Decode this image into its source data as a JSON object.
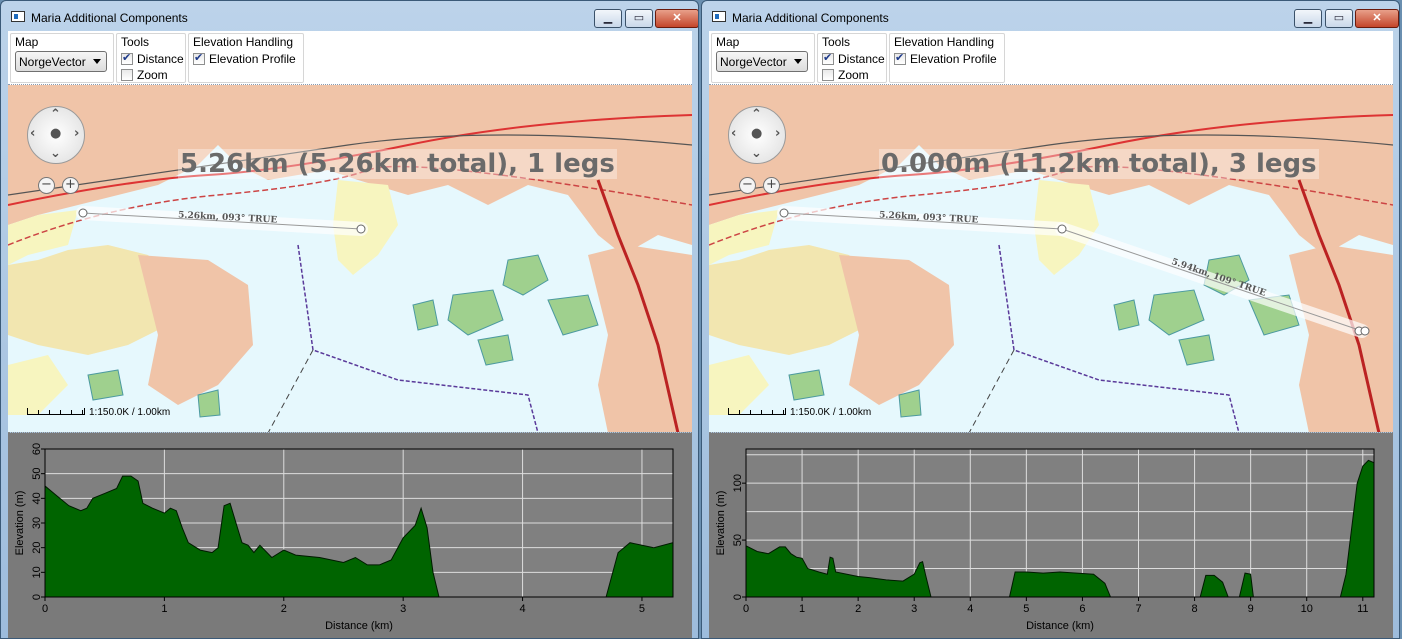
{
  "windows": [
    {
      "title": "Maria Additional Components",
      "toolbar": {
        "map_group_label": "Map",
        "map_selected": "NorgeVector",
        "tools_label": "Tools",
        "distance_label": "Distance",
        "distance_checked": true,
        "zoom_label": "Zoom",
        "zoom_checked": false,
        "elevation_label": "Elevation Handling",
        "elevation_profile_label": "Elevation Profile",
        "elevation_profile_checked": true
      },
      "map": {
        "measurement_text": "5.26km (5.26km total), 1 legs",
        "legs": [
          {
            "label": "5.26km, 093° TRUE"
          }
        ],
        "scale_text": "1:150.0K / 1.00km"
      },
      "chart_data": {
        "type": "area",
        "xlabel": "Distance (km)",
        "ylabel": "Elevation (m)",
        "xlim": [
          0,
          5.26
        ],
        "ylim": [
          0,
          60
        ],
        "xticks": [
          0,
          1,
          2,
          3,
          4,
          5
        ],
        "yticks": [
          0,
          10,
          20,
          30,
          40,
          50,
          60
        ],
        "fill": "#006400",
        "segments": [
          [
            [
              0,
              45
            ],
            [
              0.1,
              41
            ],
            [
              0.2,
              37
            ],
            [
              0.3,
              35
            ],
            [
              0.35,
              36
            ],
            [
              0.4,
              40
            ],
            [
              0.5,
              42
            ],
            [
              0.6,
              44
            ],
            [
              0.65,
              49
            ],
            [
              0.72,
              49
            ],
            [
              0.78,
              47
            ],
            [
              0.82,
              38
            ],
            [
              0.9,
              36
            ],
            [
              1.0,
              34
            ],
            [
              1.05,
              36
            ],
            [
              1.1,
              35
            ],
            [
              1.15,
              28
            ],
            [
              1.2,
              22
            ],
            [
              1.3,
              19
            ],
            [
              1.4,
              18
            ],
            [
              1.45,
              20
            ],
            [
              1.5,
              37
            ],
            [
              1.55,
              38
            ],
            [
              1.6,
              30
            ],
            [
              1.65,
              22
            ],
            [
              1.7,
              21
            ],
            [
              1.75,
              18
            ],
            [
              1.8,
              21
            ],
            [
              1.9,
              16
            ],
            [
              2.0,
              19
            ],
            [
              2.1,
              17
            ],
            [
              2.3,
              16
            ],
            [
              2.5,
              14
            ],
            [
              2.6,
              16
            ],
            [
              2.7,
              13
            ],
            [
              2.8,
              13
            ],
            [
              2.9,
              15
            ],
            [
              3.0,
              24
            ],
            [
              3.1,
              29
            ],
            [
              3.15,
              36
            ],
            [
              3.2,
              28
            ],
            [
              3.25,
              10
            ],
            [
              3.3,
              0
            ]
          ],
          [
            [
              4.7,
              0
            ],
            [
              4.8,
              18
            ],
            [
              4.9,
              22
            ],
            [
              5.0,
              21
            ],
            [
              5.1,
              20
            ],
            [
              5.26,
              22
            ]
          ]
        ]
      }
    },
    {
      "title": "Maria Additional Components",
      "toolbar": {
        "map_group_label": "Map",
        "map_selected": "NorgeVector",
        "tools_label": "Tools",
        "distance_label": "Distance",
        "distance_checked": true,
        "zoom_label": "Zoom",
        "zoom_checked": false,
        "elevation_label": "Elevation Handling",
        "elevation_profile_label": "Elevation Profile",
        "elevation_profile_checked": true
      },
      "map": {
        "measurement_text": "0.000m (11.2km total), 3 legs",
        "legs": [
          {
            "label": "5.26km, 093° TRUE"
          },
          {
            "label": "5.94km, 109° TRUE"
          }
        ],
        "scale_text": "1:150.0K / 1.00km"
      },
      "chart_data": {
        "type": "area",
        "xlabel": "Distance (km)",
        "ylabel": "Elevation (m)",
        "xlim": [
          0,
          11.2
        ],
        "ylim": [
          0,
          130
        ],
        "xticks": [
          0,
          1,
          2,
          3,
          4,
          5,
          6,
          7,
          8,
          9,
          10,
          11
        ],
        "yticks": [
          0,
          50,
          100
        ],
        "fill": "#006400",
        "segments": [
          [
            [
              0,
              45
            ],
            [
              0.2,
              40
            ],
            [
              0.4,
              38
            ],
            [
              0.6,
              44
            ],
            [
              0.7,
              44
            ],
            [
              0.8,
              38
            ],
            [
              0.9,
              35
            ],
            [
              1.0,
              34
            ],
            [
              1.1,
              25
            ],
            [
              1.3,
              22
            ],
            [
              1.45,
              20
            ],
            [
              1.5,
              35
            ],
            [
              1.55,
              34
            ],
            [
              1.6,
              22
            ],
            [
              1.8,
              20
            ],
            [
              2.0,
              18
            ],
            [
              2.2,
              17
            ],
            [
              2.5,
              15
            ],
            [
              2.8,
              14
            ],
            [
              3.0,
              20
            ],
            [
              3.1,
              30
            ],
            [
              3.15,
              31
            ],
            [
              3.2,
              20
            ],
            [
              3.3,
              0
            ]
          ],
          [
            [
              4.7,
              0
            ],
            [
              4.8,
              22
            ],
            [
              5.0,
              22
            ],
            [
              5.3,
              21
            ],
            [
              5.6,
              22
            ],
            [
              5.9,
              21
            ],
            [
              6.2,
              20
            ],
            [
              6.4,
              12
            ],
            [
              6.5,
              0
            ]
          ],
          [
            [
              8.1,
              0
            ],
            [
              8.2,
              19
            ],
            [
              8.35,
              19
            ],
            [
              8.5,
              13
            ],
            [
              8.6,
              0
            ]
          ],
          [
            [
              8.8,
              0
            ],
            [
              8.9,
              21
            ],
            [
              9.0,
              20
            ],
            [
              9.05,
              0
            ]
          ],
          [
            [
              10.6,
              0
            ],
            [
              10.7,
              20
            ],
            [
              10.8,
              60
            ],
            [
              10.9,
              100
            ],
            [
              11.0,
              115
            ],
            [
              11.1,
              120
            ],
            [
              11.2,
              118
            ]
          ]
        ]
      }
    }
  ]
}
